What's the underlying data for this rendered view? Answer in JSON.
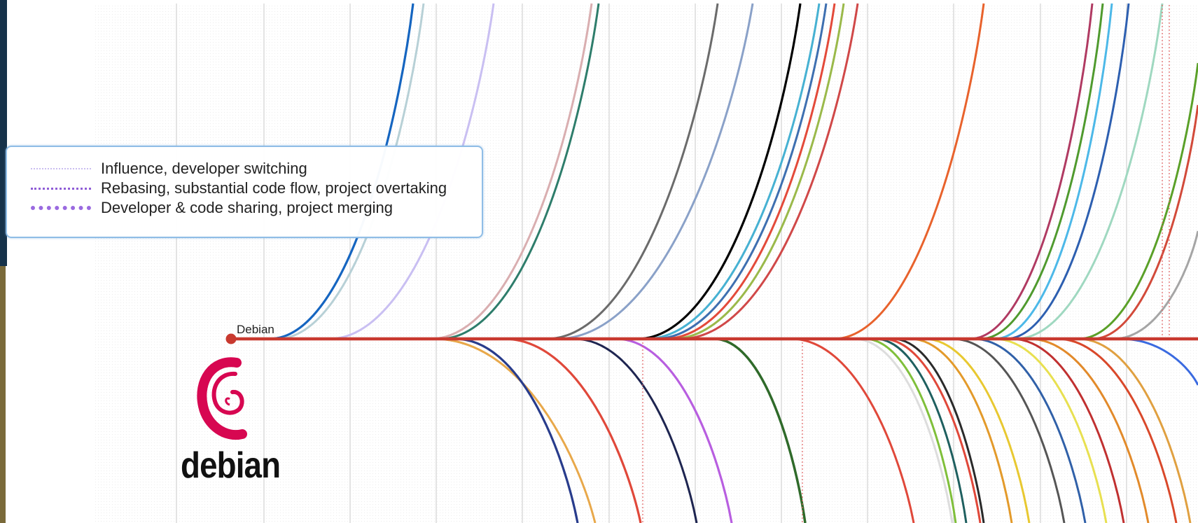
{
  "node": {
    "label": "Debian"
  },
  "logo": {
    "wordmark": "debian",
    "icon": "debian-swirl-icon",
    "color": "#d70751"
  },
  "legend": {
    "items": [
      {
        "label": "Influence, developer switching",
        "style": "thin-dotted",
        "color": "#c9bdf0"
      },
      {
        "label": "Rebasing, substantial code flow, project overtaking",
        "style": "dotted",
        "color": "#8f5dd6"
      },
      {
        "label": "Developer & code sharing, project merging",
        "style": "thick-dotted",
        "color": "#9a6ae0"
      }
    ]
  },
  "colors": {
    "trunk": "#c8392f",
    "sidebar": "#16324a",
    "accent_strip": "#7a6a3a"
  }
}
